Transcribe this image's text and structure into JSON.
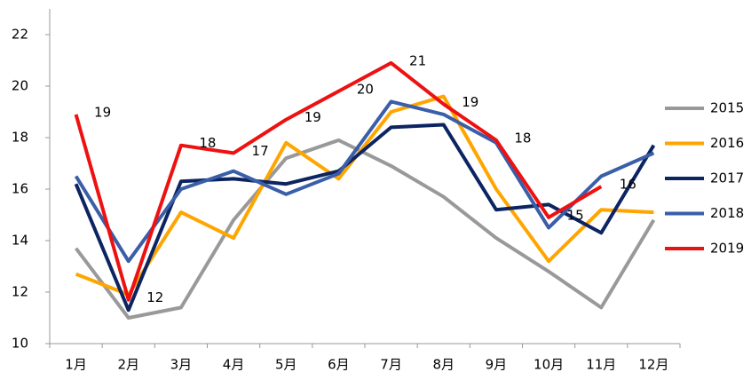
{
  "chart_data": {
    "type": "line",
    "categories": [
      "1月",
      "2月",
      "3月",
      "4月",
      "5月",
      "6月",
      "7月",
      "8月",
      "9月",
      "10月",
      "11月",
      "12月"
    ],
    "ylim": [
      10,
      22
    ],
    "yticks": [
      10,
      12,
      14,
      16,
      18,
      20,
      22
    ],
    "legend": "right",
    "series": [
      {
        "name": "2015",
        "color": "#999999",
        "values": [
          13.7,
          11.0,
          11.4,
          14.8,
          17.2,
          17.9,
          16.9,
          15.7,
          14.1,
          12.8,
          11.4,
          14.8
        ]
      },
      {
        "name": "2016",
        "color": "#ffa500",
        "values": [
          12.7,
          11.9,
          15.1,
          14.1,
          17.8,
          16.4,
          19.0,
          19.6,
          16.0,
          13.2,
          15.2,
          15.1
        ]
      },
      {
        "name": "2017",
        "color": "#0c2461",
        "values": [
          16.2,
          11.3,
          16.3,
          16.4,
          16.2,
          16.7,
          18.4,
          18.5,
          15.2,
          15.4,
          14.3,
          17.7
        ]
      },
      {
        "name": "2018",
        "color": "#3a5ea8",
        "values": [
          16.5,
          13.2,
          16.0,
          16.7,
          15.8,
          16.6,
          19.4,
          18.9,
          17.8,
          14.5,
          16.5,
          17.4
        ]
      },
      {
        "name": "2019",
        "color": "#ee1111",
        "values": [
          18.9,
          11.7,
          17.7,
          17.4,
          18.7,
          19.8,
          20.9,
          19.3,
          17.9,
          14.9,
          16.1,
          null
        ],
        "value_labels": [
          "19",
          "12",
          "18",
          "17",
          "19",
          "20",
          "21",
          "19",
          "18",
          "15",
          "16",
          null
        ]
      }
    ]
  }
}
